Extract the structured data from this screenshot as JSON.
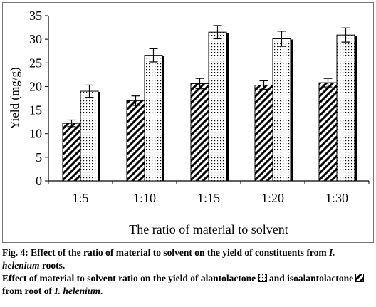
{
  "chart_data": {
    "type": "bar",
    "categories": [
      "1:5",
      "1:10",
      "1:15",
      "1:20",
      "1:30"
    ],
    "series": [
      {
        "name": "isoalantolactone",
        "pattern": "diagonal-hatch",
        "values": [
          12.2,
          17.0,
          20.6,
          20.3,
          20.8
        ],
        "errors": [
          0.7,
          1.0,
          1.1,
          0.9,
          0.9
        ]
      },
      {
        "name": "alantolactone",
        "pattern": "dotted",
        "values": [
          19.0,
          26.6,
          31.5,
          30.1,
          30.9
        ],
        "errors": [
          1.3,
          1.4,
          1.4,
          1.6,
          1.5
        ]
      }
    ],
    "xlabel": "The ratio of material to solvent",
    "ylabel": "Yield (mg/g)",
    "ylim": [
      0,
      35
    ],
    "yticks": [
      "0",
      "5",
      "10",
      "15",
      "20",
      "25",
      "30",
      "35"
    ],
    "grid": false,
    "colors": {
      "bar_fill": "#ffffff",
      "pattern": "#000000",
      "shadow": "#000000"
    }
  },
  "caption": {
    "fig_label": "Fig. 4: Effect of the ratio of material to solvent on the yield of constituents from ",
    "fig_species": "I. helenium",
    "fig_tail": " roots.",
    "legend_start": "Effect of material to solvent ratio on the yield of alantolactone ",
    "legend_mid": " and isoalantolactone ",
    "legend_end": " from root of ",
    "legend_species": "I. helenium",
    "legend_period": "."
  }
}
